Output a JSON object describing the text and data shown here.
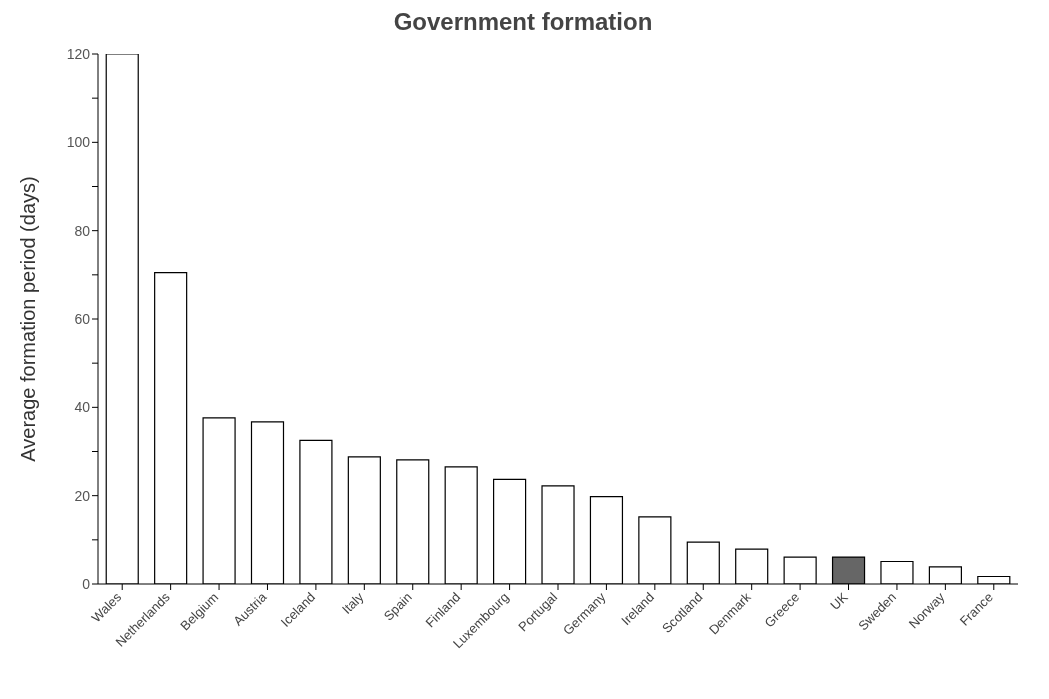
{
  "chart_data": {
    "type": "bar",
    "title": "Government formation",
    "ylabel": "Average formation period (days)",
    "categories": [
      "Wales",
      "Netherlands",
      "Belgium",
      "Austria",
      "Iceland",
      "Italy",
      "Spain",
      "Finland",
      "Luxembourg",
      "Portugal",
      "Germany",
      "Ireland",
      "Scotland",
      "Denmark",
      "Greece",
      "UK",
      "Sweden",
      "Norway",
      "France"
    ],
    "values": [
      120,
      70.5,
      37.6,
      36.7,
      32.5,
      28.8,
      28.1,
      26.5,
      23.7,
      22.2,
      19.8,
      15.2,
      9.5,
      7.9,
      6.1,
      6.1,
      5.1,
      3.9,
      1.7
    ],
    "colors": [
      "#ffffff",
      "#ffffff",
      "#ffffff",
      "#ffffff",
      "#ffffff",
      "#ffffff",
      "#ffffff",
      "#ffffff",
      "#ffffff",
      "#ffffff",
      "#ffffff",
      "#ffffff",
      "#ffffff",
      "#ffffff",
      "#ffffff",
      "#666666",
      "#ffffff",
      "#ffffff",
      "#ffffff"
    ],
    "ylim": [
      0,
      120
    ],
    "yticks": [
      0,
      {
        "value": 10,
        "label": null
      },
      20,
      {
        "value": 30,
        "label": null
      },
      40,
      {
        "value": 50,
        "label": null
      },
      60,
      {
        "value": 70,
        "label": null
      },
      80,
      {
        "value": 90,
        "label": null
      },
      100,
      {
        "value": 110,
        "label": null
      },
      120
    ],
    "grid": false
  }
}
